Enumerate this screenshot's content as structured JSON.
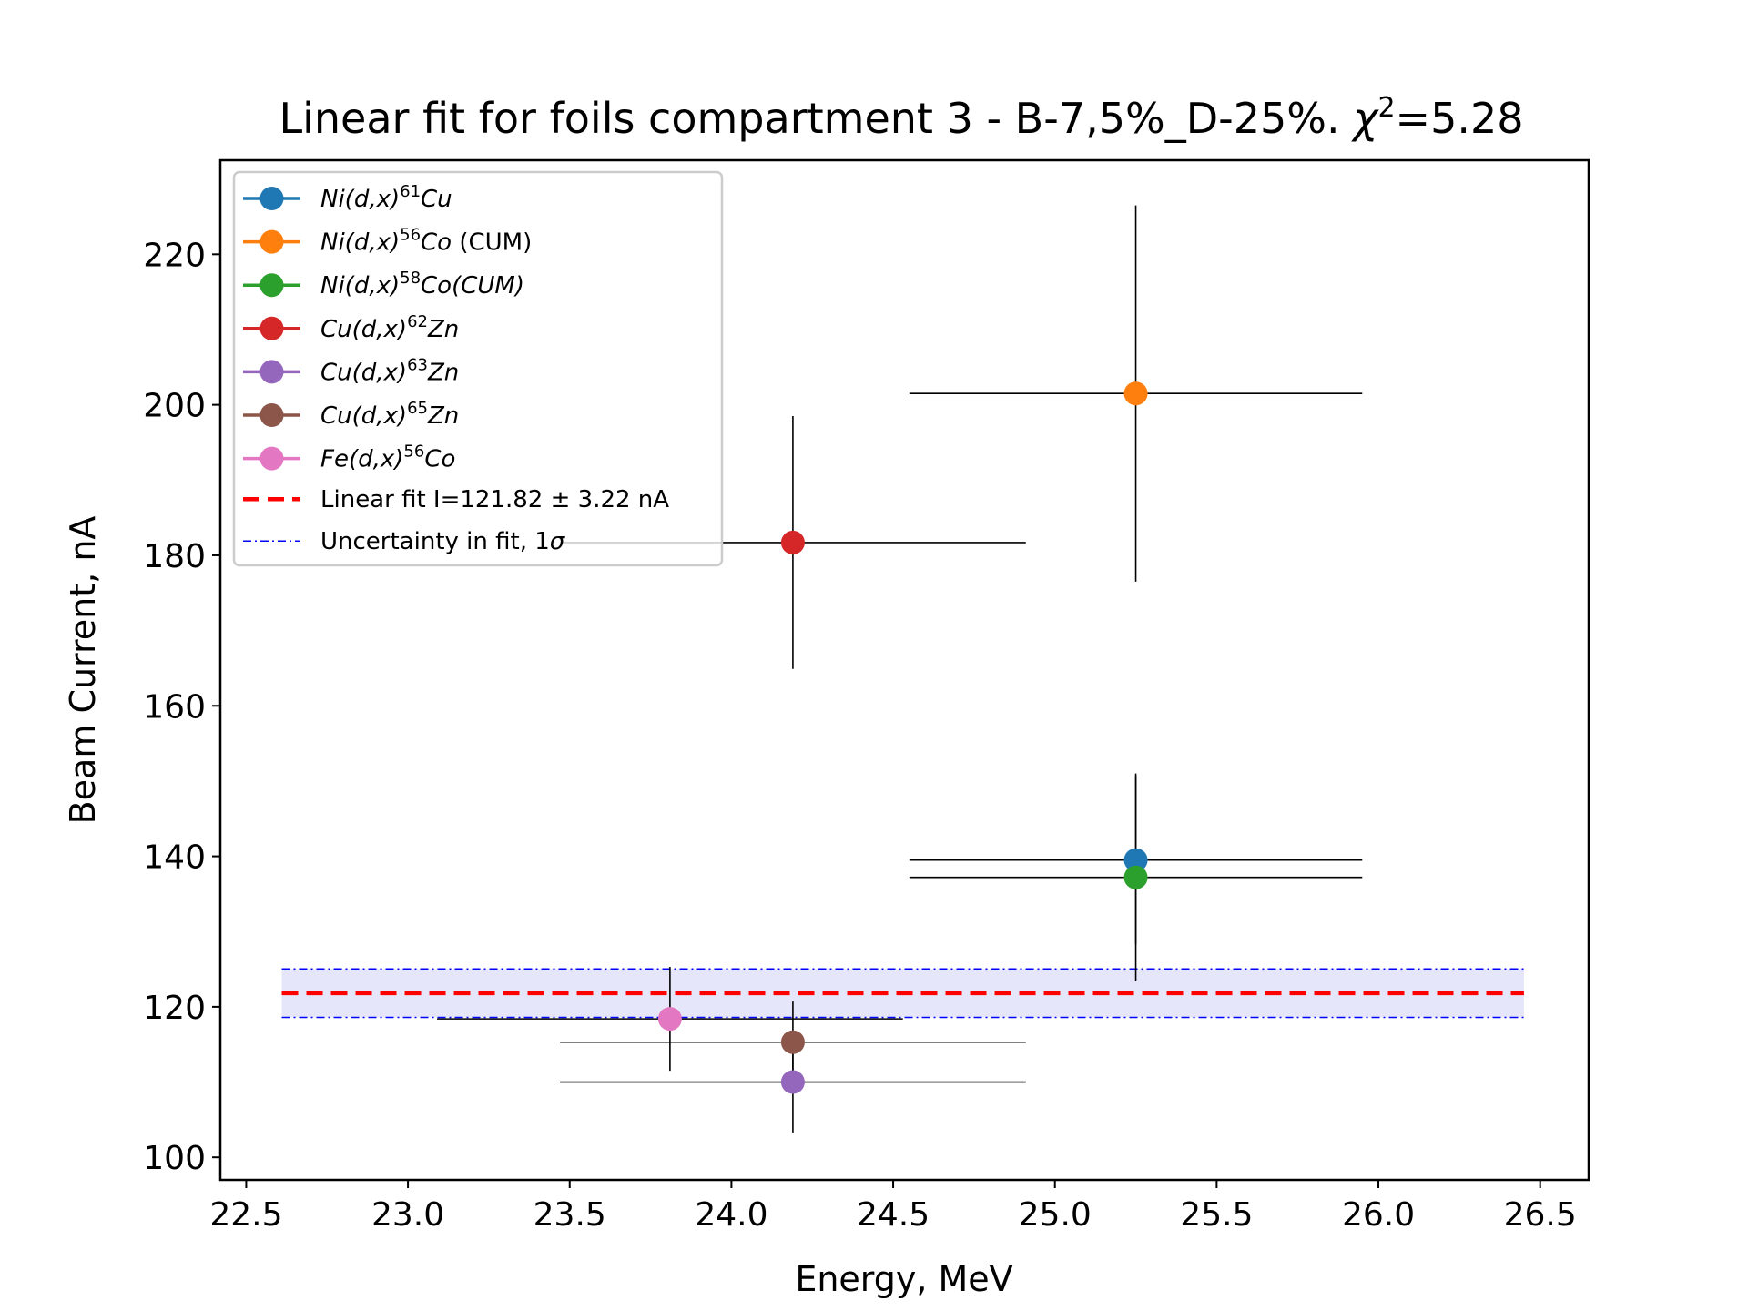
{
  "chart_data": {
    "type": "scatter",
    "title": {
      "main": "Linear fit for foils compartment 3 - B-7,5%_D-25%. ",
      "chi_symbol": "χ",
      "chi_exp": "2",
      "chi_value": "=5.28"
    },
    "xlabel": "Energy, MeV",
    "ylabel": "Beam Current, nA",
    "xlim": [
      22.42,
      26.65
    ],
    "ylim": [
      97,
      232.5
    ],
    "x_ticks": [
      22.5,
      23.0,
      23.5,
      24.0,
      24.5,
      25.0,
      25.5,
      26.0,
      26.5
    ],
    "x_tick_labels": [
      "22.5",
      "23.0",
      "23.5",
      "24.0",
      "24.5",
      "25.0",
      "25.5",
      "26.0",
      "26.5"
    ],
    "y_ticks": [
      100,
      120,
      140,
      160,
      180,
      200,
      220
    ],
    "y_tick_labels": [
      "100",
      "120",
      "140",
      "160",
      "180",
      "200",
      "220"
    ],
    "legend_position": "upper-left",
    "grid": false,
    "series": [
      {
        "legend": {
          "pre": "Ni(d,x)",
          "sup": "61",
          "post": "Cu",
          "suffix": ""
        },
        "color": "#1f77b4",
        "x": 25.25,
        "y": 139.5,
        "xerr_lo": 25.25,
        "xerr_hi": 25.25,
        "xerr": [
          24.55,
          25.95
        ],
        "yerr": [
          128.3,
          150.7
        ]
      },
      {
        "legend": {
          "pre": "Ni(d,x)",
          "sup": "56",
          "post": "Co",
          "suffix": " (CUM)"
        },
        "color": "#ff7f0e",
        "x": 25.25,
        "y": 201.5,
        "xerr": [
          24.55,
          25.95
        ],
        "yerr": [
          176.5,
          226.5
        ]
      },
      {
        "legend": {
          "pre": "Ni(d,x)",
          "sup": "58",
          "post": "Co(CUM)",
          "suffix": ""
        },
        "color": "#2ca02c",
        "x": 25.25,
        "y": 137.2,
        "xerr": [
          24.55,
          25.95
        ],
        "yerr": [
          123.5,
          151.0
        ]
      },
      {
        "legend": {
          "pre": "Cu(d,x)",
          "sup": "62",
          "post": "Zn",
          "suffix": ""
        },
        "color": "#d62728",
        "x": 24.19,
        "y": 181.7,
        "xerr": [
          23.47,
          24.91
        ],
        "yerr": [
          164.9,
          198.5
        ]
      },
      {
        "legend": {
          "pre": "Cu(d,x)",
          "sup": "63",
          "post": "Zn",
          "suffix": ""
        },
        "color": "#9467bd",
        "x": 24.19,
        "y": 110.0,
        "xerr": [
          23.47,
          24.91
        ],
        "yerr": [
          103.3,
          116.7
        ]
      },
      {
        "legend": {
          "pre": "Cu(d,x)",
          "sup": "65",
          "post": "Zn",
          "suffix": ""
        },
        "color": "#8c564b",
        "x": 24.19,
        "y": 115.3,
        "xerr": [
          23.47,
          24.91
        ],
        "yerr": [
          109.9,
          120.7
        ]
      },
      {
        "legend": {
          "pre": "Fe(d,x)",
          "sup": "56",
          "post": "Co",
          "suffix": ""
        },
        "color": "#e377c2",
        "x": 23.81,
        "y": 118.4,
        "xerr": [
          23.09,
          24.53
        ],
        "yerr": [
          111.5,
          125.3
        ]
      }
    ],
    "fit": {
      "legend": "Linear fit I=121.82 ± 3.22 nA",
      "value": 121.82,
      "uncertainty": 3.22,
      "x_range": [
        22.61,
        26.45
      ],
      "color": "#ff0000"
    },
    "uncertainty_band": {
      "legend_pre": "Uncertainty in fit, 1",
      "legend_sigma": "σ",
      "color": "#0000ff",
      "fill": "#e6e6fa"
    }
  }
}
